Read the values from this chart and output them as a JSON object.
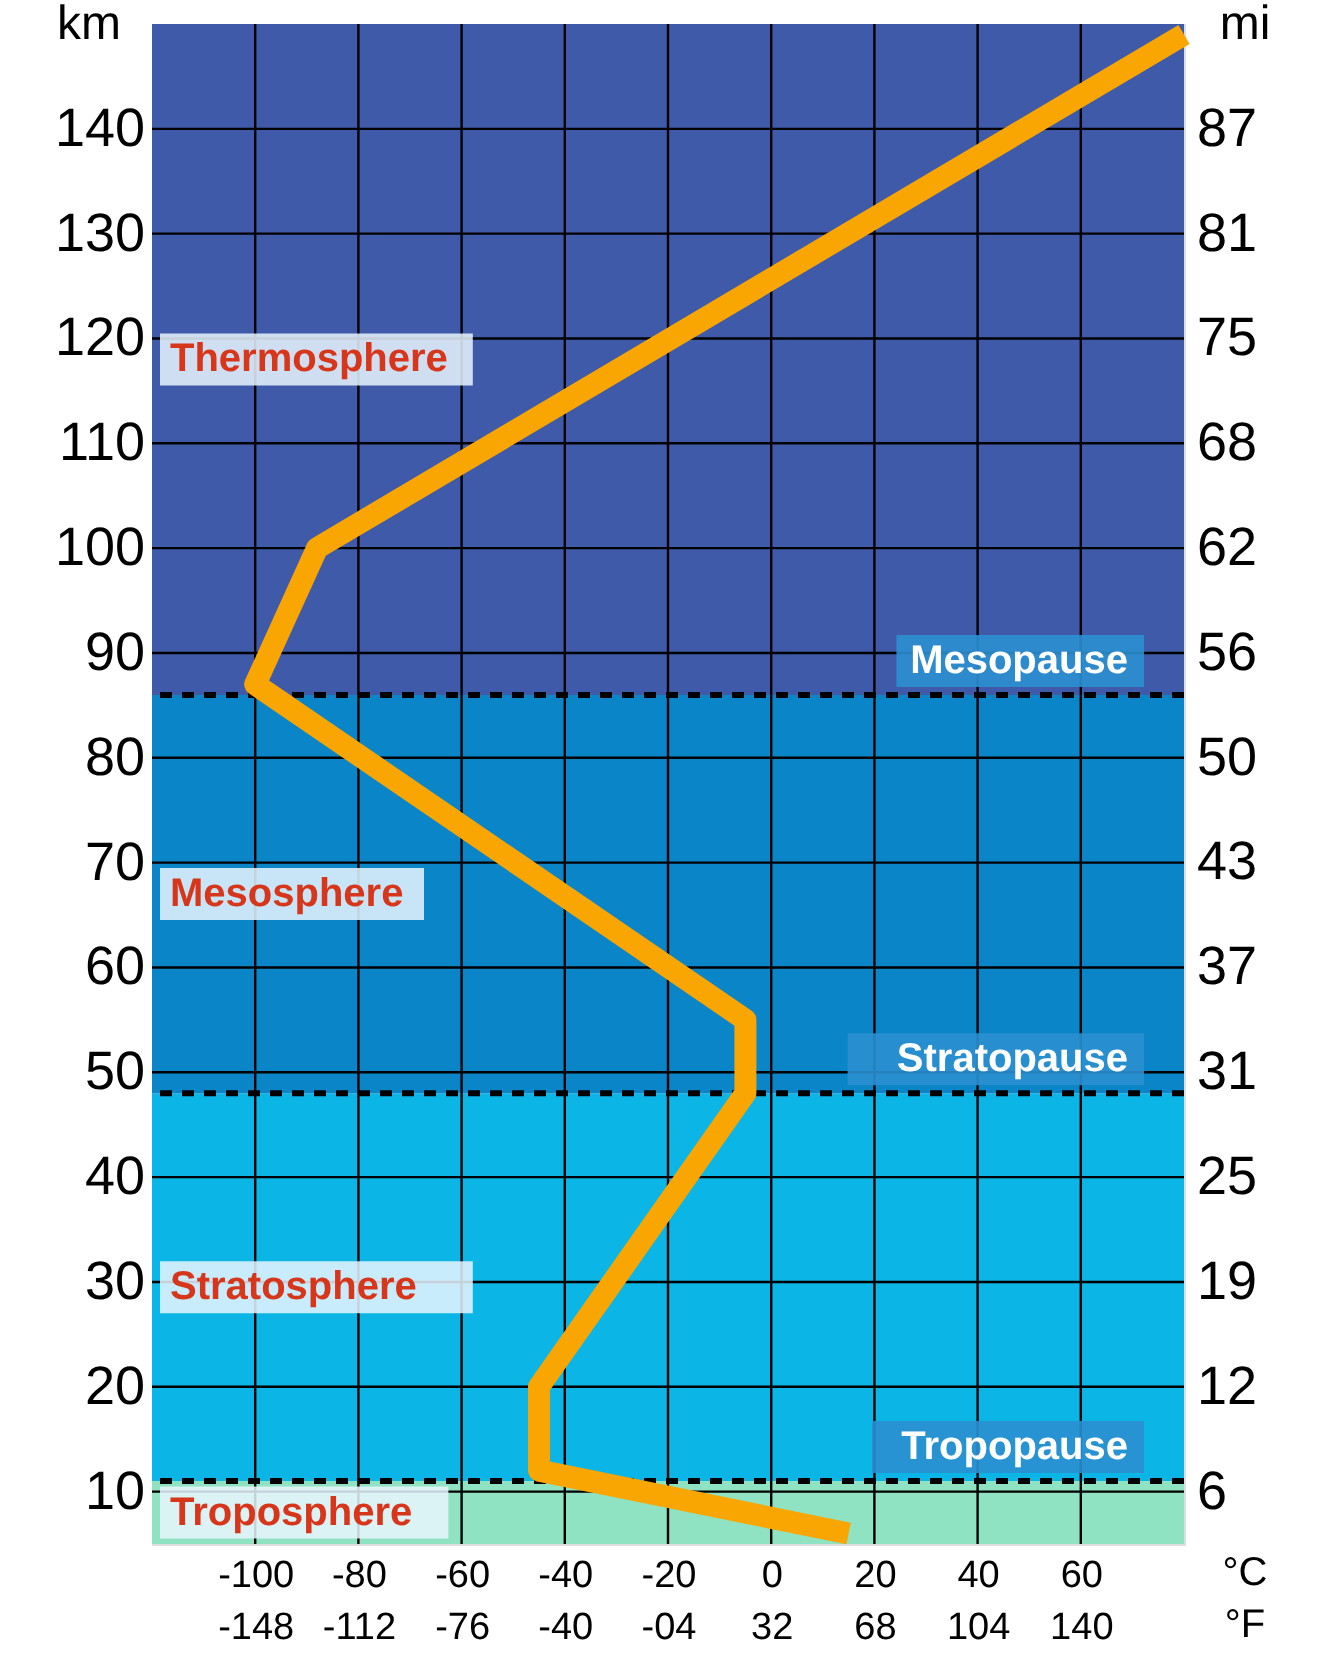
{
  "chart_data": {
    "type": "line",
    "ylabel": "km",
    "y2label": "mi",
    "xlabel": "°C",
    "x2label": "°F",
    "x": [
      15,
      -45,
      -45,
      -5,
      -5,
      -100,
      -88,
      80
    ],
    "series": [
      {
        "color": "#f9a602",
        "values": [
          6,
          12,
          20,
          48,
          55,
          87,
          100,
          149
        ]
      }
    ],
    "xlim": [
      -120,
      80
    ],
    "xticks": [
      -100,
      -80,
      -60,
      -40,
      -20,
      0,
      20,
      40,
      60
    ],
    "x2lim": [
      -184,
      176
    ],
    "x2ticks": [
      -148,
      -112,
      -76,
      -40,
      {
        "value": -4,
        "label": "-04"
      },
      32,
      68,
      104,
      140
    ],
    "ylim": [
      5,
      150
    ],
    "yticks": [
      10,
      20,
      30,
      40,
      50,
      60,
      70,
      80,
      90,
      100,
      110,
      120,
      130,
      140
    ],
    "y2lim": [
      3.1,
      93.2
    ],
    "y2ticks": [
      {
        "value": 6.21,
        "label": "6"
      },
      {
        "value": 12.43,
        "label": "12"
      },
      {
        "value": 18.64,
        "label": "19"
      },
      {
        "value": 24.85,
        "label": "25"
      },
      {
        "value": 31.07,
        "label": "31"
      },
      {
        "value": 37.28,
        "label": "37"
      },
      {
        "value": 43.5,
        "label": "43"
      },
      {
        "value": 49.71,
        "label": "50"
      },
      {
        "value": 55.92,
        "label": "56"
      },
      {
        "value": 62.14,
        "label": "62"
      },
      {
        "value": 68.35,
        "label": "68"
      },
      {
        "value": 74.56,
        "label": "75"
      },
      {
        "value": 80.78,
        "label": "81"
      },
      {
        "value": 86.99,
        "label": "87"
      }
    ],
    "grid": true,
    "bands": [
      {
        "axis": "y",
        "from": 5,
        "to": 11,
        "label": "Troposphere",
        "color": "#8fe3c3"
      },
      {
        "axis": "y",
        "from": 11,
        "to": 48,
        "label": "Stratosphere",
        "color": "#0bb5e6"
      },
      {
        "axis": "y",
        "from": 48,
        "to": 86,
        "label": "Mesosphere",
        "color": "#0a85c8"
      },
      {
        "axis": "y",
        "from": 86,
        "to": 150,
        "label": "Thermosphere",
        "color": "#3f5aa8"
      }
    ],
    "ref_lines": [
      {
        "axis": "y",
        "value": 11,
        "label": "Tropopause",
        "color": "#000000",
        "line_style": "dashed"
      },
      {
        "axis": "y",
        "value": 48,
        "label": "Stratopause",
        "color": "#000000",
        "line_style": "dashed"
      },
      {
        "axis": "y",
        "value": 86,
        "label": "Mesopause",
        "color": "#000000",
        "line_style": "dashed"
      }
    ]
  }
}
